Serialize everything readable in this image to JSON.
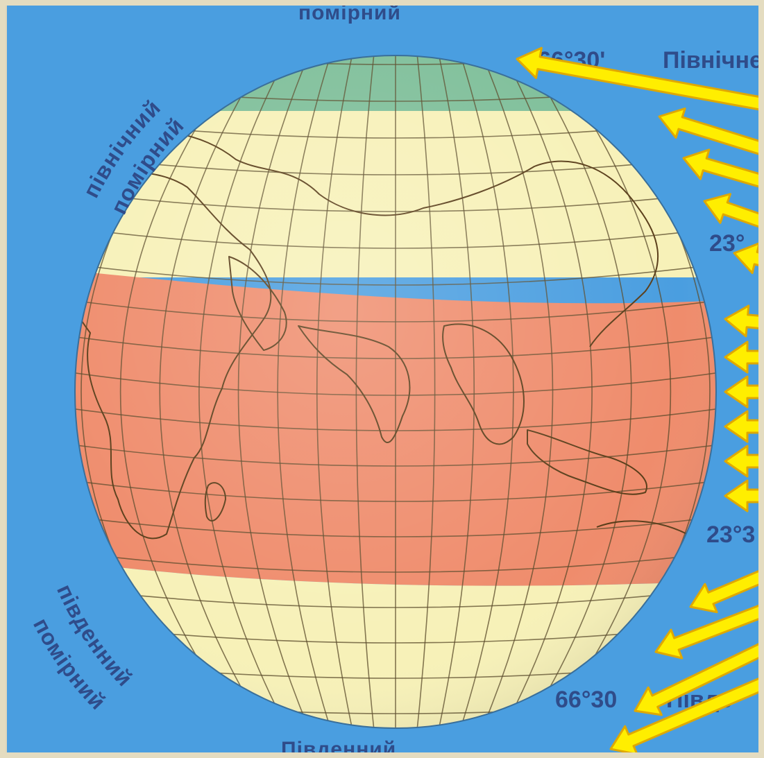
{
  "colors": {
    "ocean": "#4a9ee0",
    "frame": "#e4dcc0",
    "polar_zone": "#7fbf9a",
    "temperate_zone": "#f7f1b8",
    "tropical_zone": "#ef8c6c",
    "grid_line": "#5a4a2a",
    "coast_line": "#5a3e1a",
    "arrow_fill": "#ffee00",
    "arrow_stroke": "#e0a800",
    "label_text": "#2f4c8a"
  },
  "labels": {
    "top_belt": "помірний",
    "north_polar_circle": "66°30'",
    "north_polar_circle_name": "Північне",
    "north_tropic": "23°",
    "south_tropic": "23°3",
    "south_polar_circle": "66°30",
    "south_polar_circle_name": "Півде",
    "bottom_belt": "Південний",
    "north_temperate_line1": "північний",
    "north_temperate_line2": "помірний",
    "south_temperate_line1": "південний",
    "south_temperate_line2": "помірний"
  },
  "zones": [
    {
      "name": "northern-polar",
      "color_key": "polar_zone",
      "lat_from": 66.5,
      "lat_to": 90
    },
    {
      "name": "northern-temperate",
      "color_key": "temperate_zone",
      "lat_from": 23.5,
      "lat_to": 66.5
    },
    {
      "name": "tropical",
      "color_key": "tropical_zone",
      "lat_from": -23.5,
      "lat_to": 23.5
    },
    {
      "name": "southern-temperate",
      "color_key": "temperate_zone",
      "lat_from": -66.5,
      "lat_to": -23.5
    },
    {
      "name": "southern-polar",
      "color_key": "polar_zone",
      "lat_from": -90,
      "lat_to": -66.5
    }
  ],
  "icons": {
    "sun_ray_arrow": "sun-ray-arrow-icon"
  }
}
